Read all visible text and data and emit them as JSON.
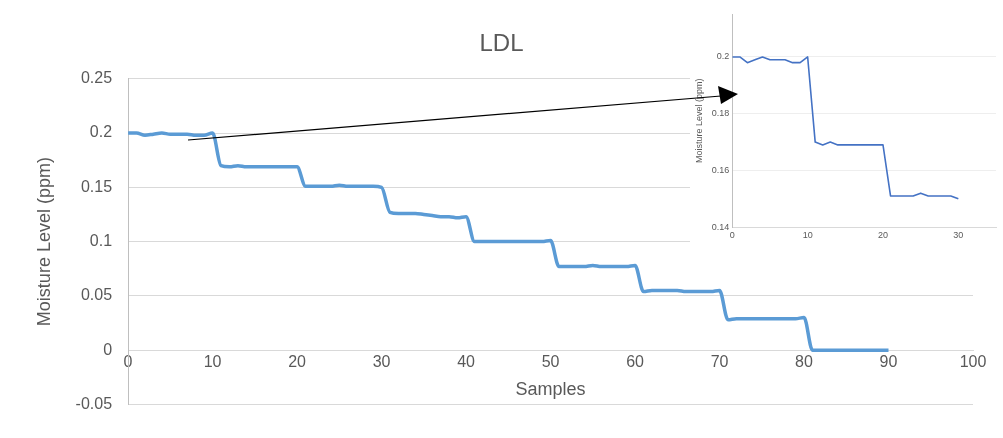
{
  "chart_data": [
    {
      "type": "line",
      "title": "LDL",
      "xlabel": "Samples",
      "ylabel": "Moisture Level (ppm)",
      "xlim": [
        0,
        100
      ],
      "xticks": [
        0,
        10,
        20,
        30,
        40,
        50,
        60,
        70,
        80,
        90,
        100
      ],
      "ylim": [
        -0.05,
        0.25
      ],
      "yticks": [
        -0.05,
        0,
        0.05,
        0.1,
        0.15,
        0.2,
        0.25
      ],
      "grid": "y",
      "x": [
        0,
        1,
        2,
        3,
        4,
        5,
        6,
        7,
        8,
        9,
        10,
        11,
        12,
        13,
        14,
        15,
        16,
        17,
        18,
        19,
        20,
        21,
        22,
        23,
        24,
        25,
        26,
        27,
        28,
        29,
        30,
        31,
        32,
        33,
        34,
        35,
        36,
        37,
        38,
        39,
        40,
        41,
        42,
        43,
        44,
        45,
        46,
        47,
        48,
        49,
        50,
        51,
        52,
        53,
        54,
        55,
        56,
        57,
        58,
        59,
        60,
        61,
        62,
        63,
        64,
        65,
        66,
        67,
        68,
        69,
        70,
        71,
        72,
        73,
        74,
        75,
        76,
        77,
        78,
        79,
        80,
        81,
        82,
        83,
        84,
        85,
        86,
        87,
        88,
        89,
        90
      ],
      "series": [
        {
          "color": "#5b9bd5",
          "values": [
            0.2,
            0.2,
            0.198,
            0.199,
            0.2,
            0.199,
            0.199,
            0.199,
            0.198,
            0.198,
            0.2,
            0.17,
            0.169,
            0.17,
            0.169,
            0.169,
            0.169,
            0.169,
            0.169,
            0.169,
            0.169,
            0.151,
            0.151,
            0.151,
            0.151,
            0.152,
            0.151,
            0.151,
            0.151,
            0.151,
            0.15,
            0.127,
            0.126,
            0.126,
            0.126,
            0.125,
            0.124,
            0.123,
            0.123,
            0.122,
            0.123,
            0.1,
            0.1,
            0.1,
            0.1,
            0.1,
            0.1,
            0.1,
            0.1,
            0.1,
            0.101,
            0.077,
            0.077,
            0.077,
            0.077,
            0.078,
            0.077,
            0.077,
            0.077,
            0.077,
            0.078,
            0.054,
            0.055,
            0.055,
            0.055,
            0.055,
            0.054,
            0.054,
            0.054,
            0.054,
            0.055,
            0.028,
            0.029,
            0.029,
            0.029,
            0.029,
            0.029,
            0.029,
            0.029,
            0.029,
            0.03,
            0,
            0,
            0,
            0,
            0,
            0,
            0,
            0,
            0,
            0
          ]
        }
      ]
    },
    {
      "type": "line",
      "ylabel": "Moisture Level (ppm)",
      "xlim": [
        0,
        35
      ],
      "xticks": [
        0,
        10,
        20,
        30
      ],
      "ylim": [
        0.14,
        0.215
      ],
      "yticks": [
        0.14,
        0.16,
        0.18,
        0.2
      ],
      "grid": "y",
      "x": [
        0,
        1,
        2,
        3,
        4,
        5,
        6,
        7,
        8,
        9,
        10,
        11,
        12,
        13,
        14,
        15,
        16,
        17,
        18,
        19,
        20,
        21,
        22,
        23,
        24,
        25,
        26,
        27,
        28,
        29,
        30
      ],
      "series": [
        {
          "color": "#4472c4",
          "values": [
            0.2,
            0.2,
            0.198,
            0.199,
            0.2,
            0.199,
            0.199,
            0.199,
            0.198,
            0.198,
            0.2,
            0.17,
            0.169,
            0.17,
            0.169,
            0.169,
            0.169,
            0.169,
            0.169,
            0.169,
            0.169,
            0.151,
            0.151,
            0.151,
            0.151,
            0.152,
            0.151,
            0.151,
            0.151,
            0.151,
            0.15
          ]
        }
      ]
    }
  ]
}
